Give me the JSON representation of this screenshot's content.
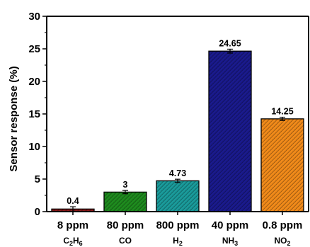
{
  "chart_data": {
    "type": "bar",
    "ylabel": "Sensor response (%)",
    "ylim": [
      0,
      30
    ],
    "yticks": [
      0,
      5,
      10,
      15,
      20,
      25,
      30
    ],
    "grid": false,
    "categories": [
      "8 ppm",
      "80 ppm",
      "800 ppm",
      "40 ppm",
      "0.8 ppm"
    ],
    "gases": [
      {
        "base": "C",
        "sub": "2",
        "base2": "H",
        "sub2": "6"
      },
      {
        "base": "CO",
        "sub": "",
        "base2": "",
        "sub2": ""
      },
      {
        "base": "H",
        "sub": "2",
        "base2": "",
        "sub2": ""
      },
      {
        "base": "NH",
        "sub": "3",
        "base2": "",
        "sub2": ""
      },
      {
        "base": "NO",
        "sub": "2",
        "base2": "",
        "sub2": ""
      }
    ],
    "values": [
      0.4,
      3,
      4.73,
      24.65,
      14.25
    ],
    "value_labels": [
      "0.4",
      "3",
      "4.73",
      "24.65",
      "14.25"
    ],
    "errors": [
      0.35,
      0.25,
      0.25,
      0.3,
      0.25
    ],
    "colors": [
      "#8b1a1a",
      "#1e8a1e",
      "#1a9a9a",
      "#1a1a8c",
      "#f08a1a"
    ]
  }
}
